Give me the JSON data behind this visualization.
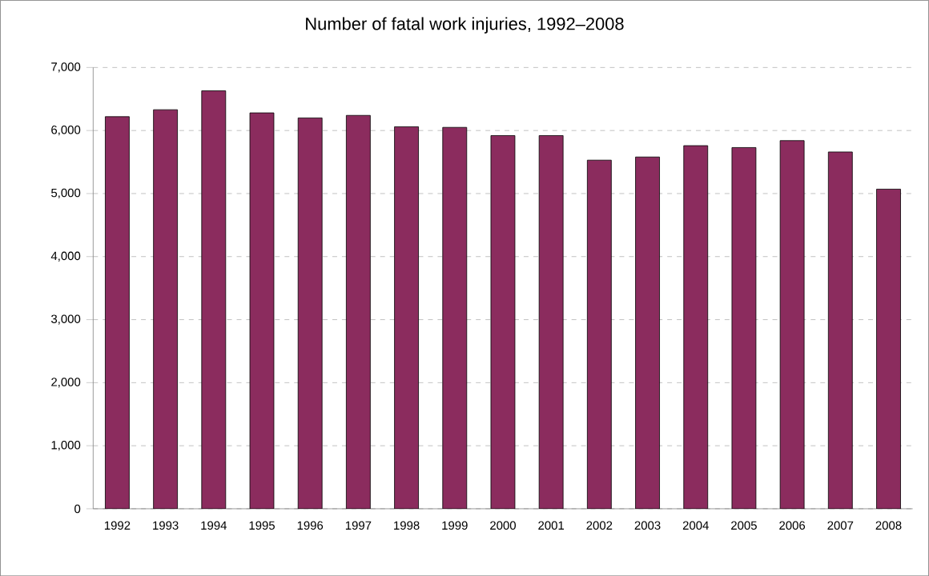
{
  "chart_data": {
    "type": "bar",
    "title": "Number of fatal work injuries, 1992–2008",
    "categories": [
      "1992",
      "1993",
      "1994",
      "1995",
      "1996",
      "1997",
      "1998",
      "1999",
      "2000",
      "2001",
      "2002",
      "2003",
      "2004",
      "2005",
      "2006",
      "2007",
      "2008"
    ],
    "values": [
      6220,
      6330,
      6630,
      6280,
      6200,
      6240,
      6060,
      6050,
      5920,
      5920,
      5530,
      5580,
      5760,
      5730,
      5840,
      5660,
      5070
    ],
    "color": "#8b2c5e",
    "ylim": [
      0,
      7000
    ],
    "yticks": [
      {
        "value": 0,
        "label": "0"
      },
      {
        "value": 1000,
        "label": "1,000"
      },
      {
        "value": 2000,
        "label": "2,000"
      },
      {
        "value": 3000,
        "label": "3,000"
      },
      {
        "value": 4000,
        "label": "4,000"
      },
      {
        "value": 5000,
        "label": "5,000"
      },
      {
        "value": 6000,
        "label": "6,000"
      },
      {
        "value": 7000,
        "label": "7,000"
      }
    ],
    "grid": "y"
  }
}
